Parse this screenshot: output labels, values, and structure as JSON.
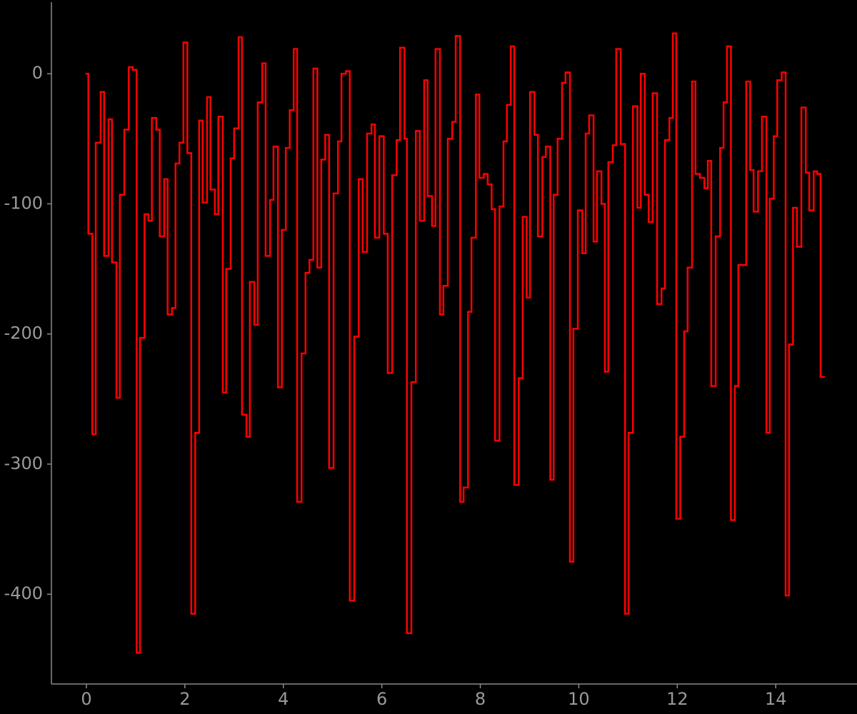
{
  "chart_data": {
    "type": "step",
    "xlim": [
      -0.71,
      15.65
    ],
    "ylim": [
      -469,
      55
    ],
    "xticks": [
      0,
      2,
      4,
      6,
      8,
      10,
      12,
      14
    ],
    "yticks": [
      0,
      -100,
      -200,
      -300,
      -400
    ],
    "grid": false,
    "series": [
      {
        "color": "#ff0000",
        "x": [
          0,
          0.04,
          0.12,
          0.19,
          0.29,
          0.36,
          0.45,
          0.52,
          0.61,
          0.68,
          0.77,
          0.86,
          0.94,
          1.02,
          1.09,
          1.18,
          1.26,
          1.33,
          1.42,
          1.49,
          1.58,
          1.65,
          1.74,
          1.81,
          1.89,
          1.97,
          2.05,
          2.13,
          2.21,
          2.29,
          2.36,
          2.45,
          2.52,
          2.61,
          2.68,
          2.77,
          2.84,
          2.93,
          3.0,
          3.09,
          3.16,
          3.25,
          3.32,
          3.41,
          3.48,
          3.57,
          3.64,
          3.73,
          3.8,
          3.89,
          3.97,
          4.05,
          4.13,
          4.21,
          4.28,
          4.37,
          4.45,
          4.53,
          4.61,
          4.69,
          4.77,
          4.85,
          4.93,
          5.02,
          5.11,
          5.18,
          5.27,
          5.35,
          5.44,
          5.53,
          5.61,
          5.7,
          5.79,
          5.86,
          5.95,
          6.04,
          6.12,
          6.21,
          6.3,
          6.37,
          6.46,
          6.51,
          6.6,
          6.69,
          6.77,
          6.86,
          6.93,
          7.02,
          7.09,
          7.18,
          7.25,
          7.34,
          7.43,
          7.5,
          7.59,
          7.66,
          7.75,
          7.82,
          7.91,
          7.98,
          8.07,
          8.15,
          8.23,
          8.3,
          8.39,
          8.47,
          8.54,
          8.62,
          8.69,
          8.78,
          8.86,
          8.94,
          9.01,
          9.1,
          9.17,
          9.26,
          9.33,
          9.42,
          9.49,
          9.57,
          9.66,
          9.73,
          9.82,
          9.89,
          9.98,
          10.07,
          10.14,
          10.21,
          10.3,
          10.37,
          10.46,
          10.53,
          10.6,
          10.69,
          10.76,
          10.85,
          10.94,
          11.01,
          11.1,
          11.19,
          11.26,
          11.34,
          11.42,
          11.5,
          11.59,
          11.68,
          11.75,
          11.84,
          11.91,
          11.98,
          12.06,
          12.14,
          12.21,
          12.3,
          12.37,
          12.46,
          12.55,
          12.62,
          12.69,
          12.78,
          12.87,
          12.94,
          13.01,
          13.09,
          13.17,
          13.24,
          13.33,
          13.4,
          13.48,
          13.55,
          13.64,
          13.72,
          13.81,
          13.88,
          13.96,
          14.03,
          14.12,
          14.2,
          14.27,
          14.35,
          14.43,
          14.52,
          14.61,
          14.68,
          14.77,
          14.84,
          14.91
        ],
        "values": [
          0,
          -123,
          -277,
          -53,
          -14,
          -140,
          -35,
          -145,
          -249,
          -93,
          -43,
          5,
          3,
          -445,
          -203,
          -108,
          -113,
          -34,
          -43,
          -125,
          -81,
          -185,
          -180,
          -69,
          -53,
          24,
          -61,
          -415,
          -276,
          -36,
          -99,
          -18,
          -89,
          -108,
          -33,
          -245,
          -150,
          -65,
          -42,
          28,
          -262,
          -279,
          -160,
          -193,
          -22,
          8,
          -140,
          -97,
          -56,
          -241,
          -120,
          -57,
          -28,
          19,
          -329,
          -215,
          -153,
          -143,
          4,
          -149,
          -66,
          -47,
          -303,
          -92,
          -52,
          0,
          2,
          -405,
          -202,
          -81,
          -137,
          -46,
          -39,
          -126,
          -48,
          -123,
          -230,
          -78,
          -51,
          20,
          -50,
          -430,
          -237,
          -44,
          -113,
          -5,
          -94,
          -117,
          19,
          -185,
          -163,
          -50,
          -37,
          29,
          -329,
          -318,
          -183,
          -126,
          -16,
          -80,
          -77,
          -85,
          -104,
          -282,
          -102,
          -52,
          -24,
          21,
          -316,
          -234,
          -110,
          -172,
          -14,
          -47,
          -125,
          -64,
          -56,
          -312,
          -93,
          -50,
          -7,
          1,
          -375,
          -196,
          -105,
          -138,
          -46,
          -32,
          -129,
          -75,
          -100,
          -229,
          -68,
          -55,
          19,
          -54,
          -415,
          -276,
          -25,
          -103,
          0,
          -93,
          -114,
          -15,
          -177,
          -165,
          -51,
          -34,
          31,
          -342,
          -279,
          -198,
          -149,
          -6,
          -77,
          -80,
          -88,
          -67,
          -240,
          -125,
          -57,
          -22,
          21,
          -343,
          -240,
          -147,
          -147,
          -6,
          -74,
          -106,
          -75,
          -33,
          -276,
          -96,
          -48,
          -5,
          1,
          -401,
          -208,
          -103,
          -133,
          -26,
          -76,
          -105,
          -75,
          -77,
          -233
        ]
      }
    ]
  }
}
